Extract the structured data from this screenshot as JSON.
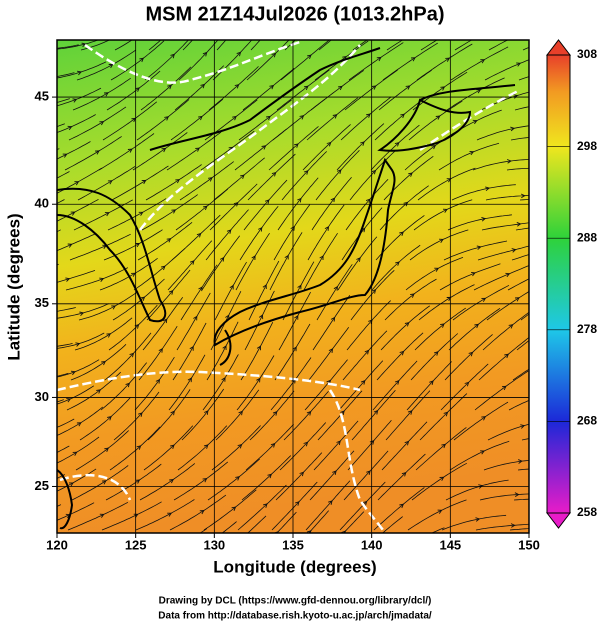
{
  "map": {
    "title": "MSM 21Z14Jul2026 (1013.2hPa)",
    "xlabel": "Longitude (degrees)",
    "ylabel": "Latitude  (degrees)",
    "xlim": [
      120,
      150
    ],
    "xticks": [
      120,
      125,
      130,
      135,
      140,
      145,
      150
    ],
    "ylim": [
      22.3,
      47.5
    ],
    "yticks": [
      25,
      30,
      35,
      40,
      45
    ],
    "colorbar": {
      "lim": [
        258,
        308
      ],
      "ticks": [
        258,
        268,
        278,
        288,
        298,
        308
      ]
    },
    "credits": [
      "Drawing by DCL (https://www.gfd-dennou.org/library/dcl/)",
      "Data from http://database.rish.kyoto-u.ac.jp/arch/jmadata/"
    ]
  }
}
